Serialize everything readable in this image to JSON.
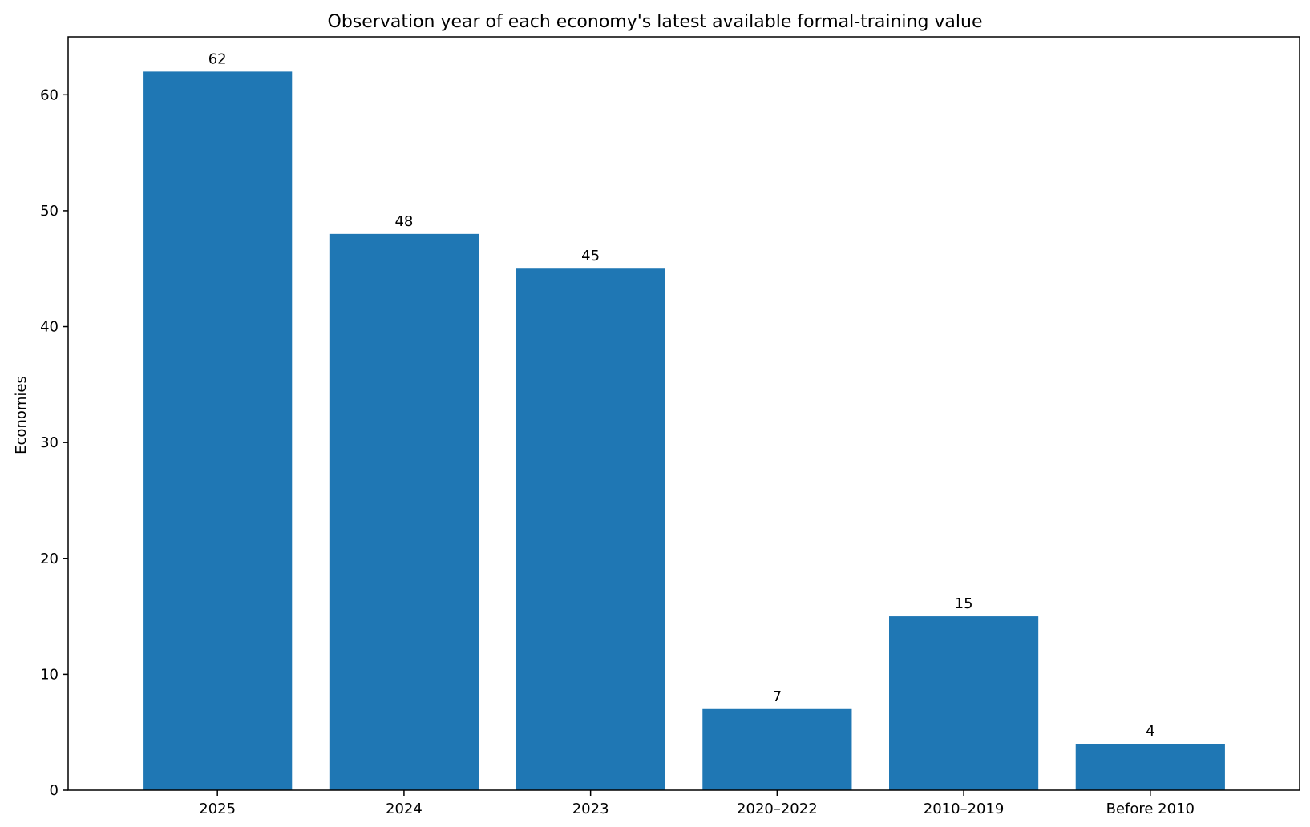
{
  "chart_data": {
    "type": "bar",
    "title": "Observation year of each economy's latest available formal-training value",
    "xlabel": "",
    "ylabel": "Economies",
    "categories": [
      "2025",
      "2024",
      "2023",
      "2020–2022",
      "2010–2019",
      "Before 2010"
    ],
    "values": [
      62,
      48,
      45,
      7,
      15,
      4
    ],
    "data_labels": [
      "62",
      "48",
      "45",
      "7",
      "15",
      "4"
    ],
    "ylim": [
      0,
      65
    ],
    "yticks": [
      0,
      10,
      20,
      30,
      40,
      50,
      60
    ],
    "bar_color": "#1f77b4",
    "grid": false,
    "legend": "none"
  }
}
